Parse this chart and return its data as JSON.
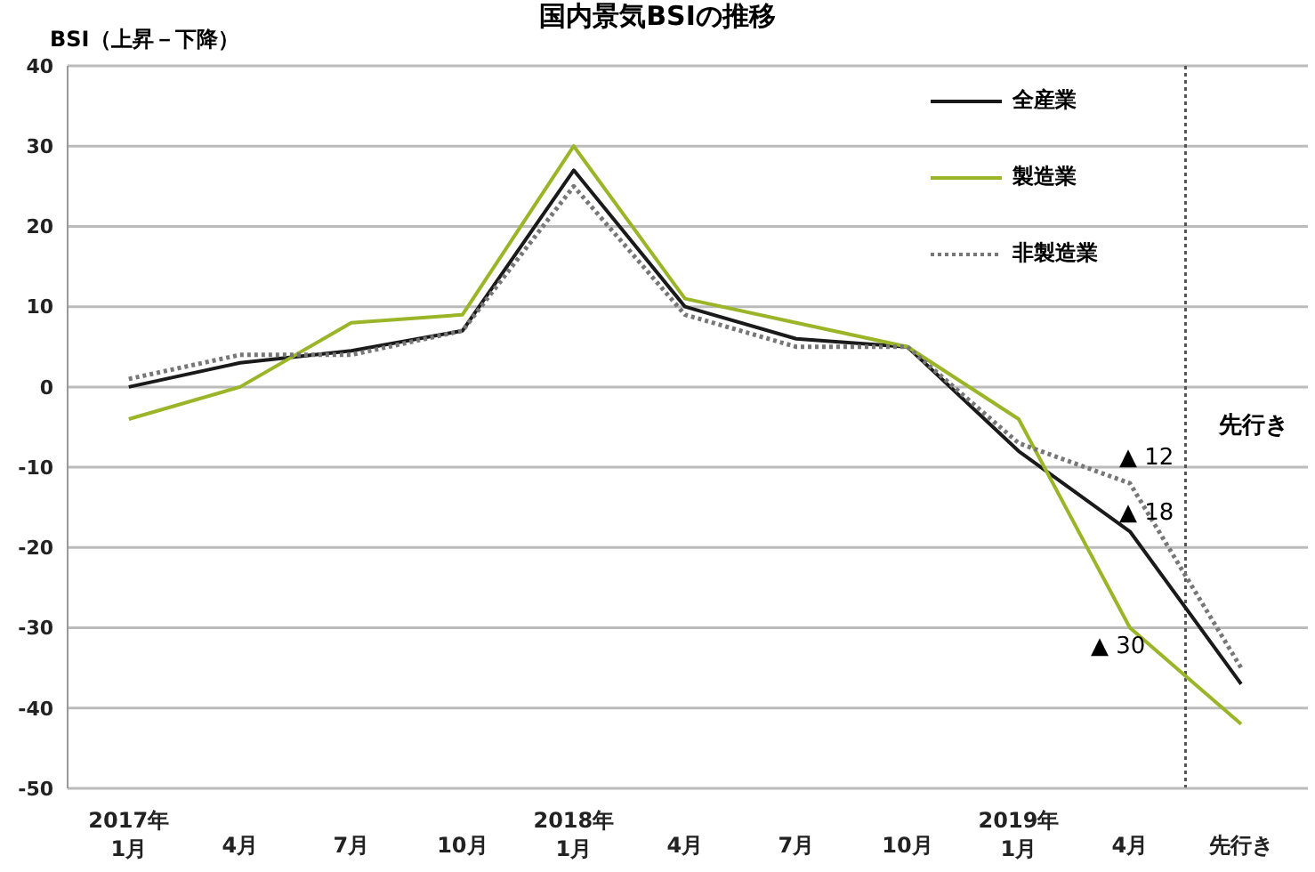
{
  "chart_data": {
    "type": "line",
    "title": "国内景気BSIの推移",
    "ylabel": "BSI（上昇－下降）",
    "categories": [
      "2017年\n1月",
      "4月",
      "7月",
      "10月",
      "2018年\n1月",
      "4月",
      "7月",
      "10月",
      "2019年\n1月",
      "4月",
      "先行き"
    ],
    "series": [
      {
        "name": "全産業",
        "color": "#1a1a1a",
        "line_style": "solid",
        "values": [
          0,
          3,
          4.5,
          7,
          27,
          10,
          6,
          5,
          -8,
          -18,
          -37
        ]
      },
      {
        "name": "製造業",
        "color": "#9ab528",
        "line_style": "solid",
        "values": [
          -4,
          0,
          8,
          9,
          30,
          11,
          8,
          5,
          -4,
          -30,
          -42
        ]
      },
      {
        "name": "非製造業",
        "color": "#777777",
        "line_style": "dotted",
        "values": [
          1,
          4,
          4,
          7,
          25,
          9,
          5,
          5,
          -7,
          -12,
          -35
        ]
      }
    ],
    "ylim": [
      -50,
      40
    ],
    "yticks": [
      -50,
      -40,
      -30,
      -20,
      -10,
      0,
      10,
      20,
      30,
      40
    ],
    "grid": "y",
    "legend": "top right",
    "marker": "none",
    "ref_lines": [
      {
        "axis": "x",
        "value": "先行き",
        "line_style": "dotted",
        "color": "#555555"
      }
    ],
    "annotations": [
      "▲ 12",
      "▲ 18",
      "▲ 30",
      "先行き"
    ]
  }
}
